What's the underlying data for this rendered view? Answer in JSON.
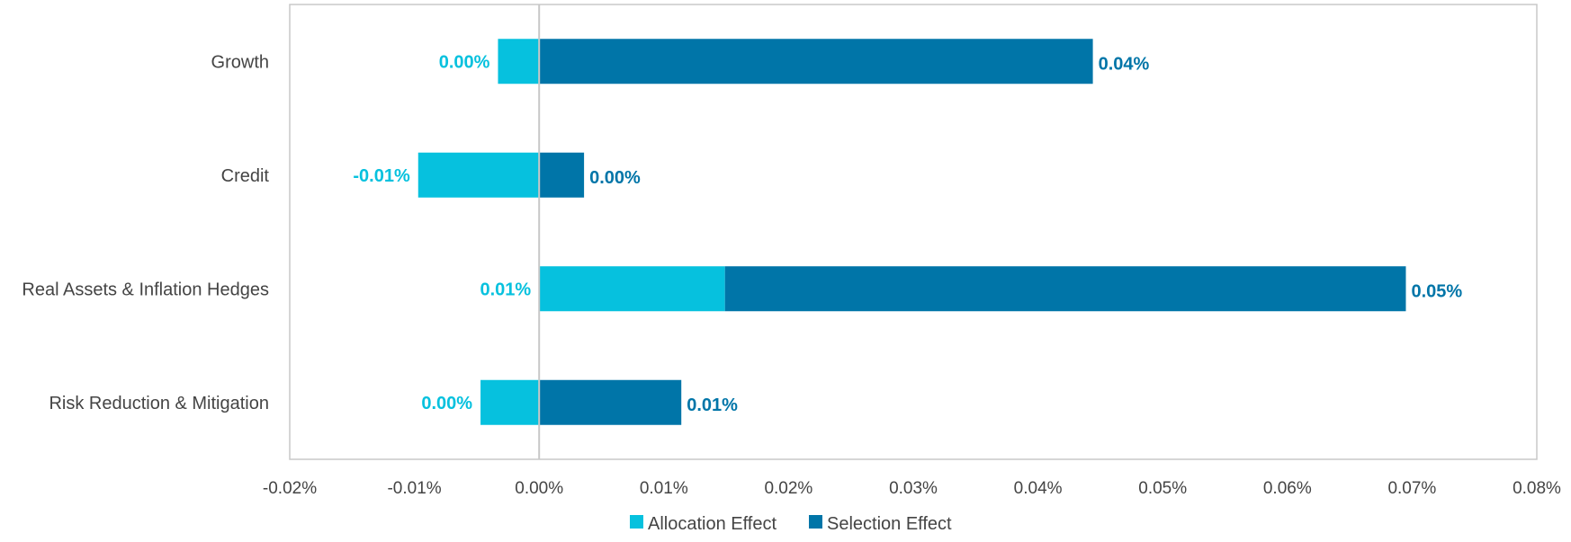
{
  "chart_data": {
    "type": "bar",
    "orientation": "horizontal",
    "stacked": true,
    "title": "",
    "xlabel": "",
    "ylabel": "",
    "xlim": [
      -0.02,
      0.08
    ],
    "xticks": [
      "-0.02%",
      "-0.01%",
      "0.00%",
      "0.01%",
      "0.02%",
      "0.03%",
      "0.04%",
      "0.05%",
      "0.06%",
      "0.07%",
      "0.08%"
    ],
    "xtick_values": [
      -0.02,
      -0.01,
      0.0,
      0.01,
      0.02,
      0.03,
      0.04,
      0.05,
      0.06,
      0.07,
      0.08
    ],
    "categories": [
      "Growth",
      "Credit",
      "Real Assets & Inflation Hedges",
      "Risk Reduction & Mitigation"
    ],
    "series": [
      {
        "name": "Allocation Effect",
        "color": "#06C1DE",
        "values": [
          -0.0033,
          -0.0097,
          0.0149,
          -0.0047
        ],
        "labels": [
          "0.00%",
          "-0.01%",
          "0.01%",
          "0.00%"
        ]
      },
      {
        "name": "Selection Effect",
        "color": "#0075A8",
        "values": [
          0.0444,
          0.0036,
          0.0546,
          0.0114
        ],
        "labels": [
          "0.04%",
          "0.00%",
          "0.05%",
          "0.01%"
        ]
      }
    ],
    "grid": false,
    "legend": "bottom",
    "frame_color": "#C8C8C8",
    "zero_line_color": "#C8C8C8",
    "text_color": "#444444"
  }
}
